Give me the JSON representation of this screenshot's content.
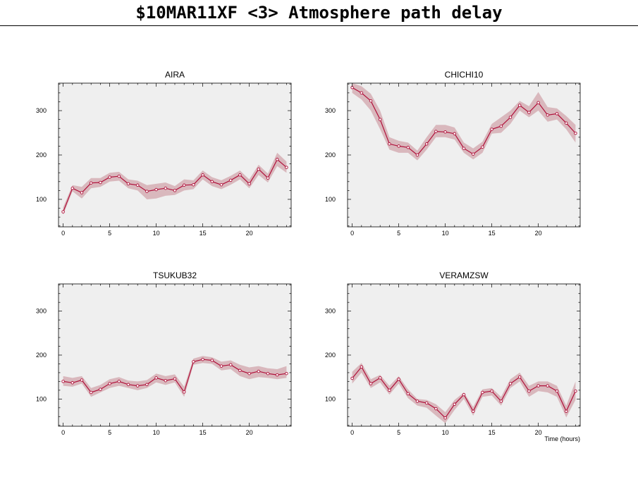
{
  "title": "$10MAR11XF <3>  Atmosphere path delay",
  "colors": {
    "line": "#b0103a",
    "band": "#d9b8bd",
    "plot_bg": "#efefef"
  },
  "chart_data": [
    {
      "type": "line",
      "title": "AIRA",
      "xlabel": "",
      "xlim": [
        -0.5,
        24.5
      ],
      "ylim": [
        38,
        362
      ],
      "xticks": [
        0,
        5,
        10,
        15,
        20
      ],
      "yticks": [
        100,
        200,
        300
      ],
      "x": [
        0,
        1,
        2,
        3,
        4,
        5,
        6,
        7,
        8,
        9,
        10,
        11,
        12,
        13,
        14,
        15,
        16,
        17,
        18,
        19,
        20,
        21,
        22,
        23,
        24
      ],
      "y": [
        72,
        125,
        115,
        137,
        138,
        150,
        152,
        135,
        132,
        118,
        122,
        125,
        120,
        132,
        133,
        155,
        140,
        133,
        143,
        155,
        135,
        168,
        148,
        190,
        172
      ],
      "lower": [
        65,
        118,
        102,
        125,
        128,
        140,
        142,
        125,
        120,
        100,
        102,
        108,
        110,
        120,
        123,
        145,
        130,
        123,
        133,
        145,
        125,
        155,
        138,
        175,
        160
      ],
      "upper": [
        82,
        132,
        128,
        148,
        148,
        160,
        162,
        145,
        142,
        132,
        135,
        138,
        130,
        145,
        143,
        165,
        150,
        143,
        153,
        165,
        145,
        178,
        158,
        205,
        185
      ]
    },
    {
      "type": "line",
      "title": "CHICHI10",
      "xlabel": "",
      "xlim": [
        -0.5,
        24.5
      ],
      "ylim": [
        38,
        362
      ],
      "xticks": [
        0,
        5,
        10,
        15,
        20
      ],
      "yticks": [
        100,
        200,
        300
      ],
      "x": [
        0,
        1,
        2,
        3,
        4,
        5,
        6,
        7,
        8,
        9,
        10,
        11,
        12,
        13,
        14,
        15,
        16,
        17,
        18,
        19,
        20,
        21,
        22,
        23,
        24
      ],
      "y": [
        352,
        340,
        322,
        280,
        225,
        220,
        217,
        200,
        225,
        253,
        252,
        248,
        215,
        202,
        218,
        258,
        265,
        285,
        312,
        296,
        318,
        290,
        293,
        272,
        249
      ],
      "lower": [
        340,
        325,
        300,
        258,
        212,
        205,
        205,
        188,
        212,
        240,
        240,
        235,
        205,
        190,
        205,
        248,
        250,
        270,
        300,
        285,
        300,
        275,
        280,
        258,
        228
      ],
      "upper": [
        362,
        355,
        338,
        300,
        240,
        232,
        228,
        210,
        240,
        268,
        268,
        262,
        228,
        215,
        230,
        270,
        285,
        300,
        322,
        310,
        342,
        308,
        305,
        288,
        268
      ]
    },
    {
      "type": "line",
      "title": "TSUKUB32",
      "xlabel": "",
      "xlim": [
        -0.5,
        24.5
      ],
      "ylim": [
        38,
        362
      ],
      "xticks": [
        0,
        5,
        10,
        15,
        20
      ],
      "yticks": [
        100,
        200,
        300
      ],
      "x": [
        0,
        1,
        2,
        3,
        4,
        5,
        6,
        7,
        8,
        9,
        10,
        11,
        12,
        13,
        14,
        15,
        16,
        17,
        18,
        19,
        20,
        21,
        22,
        23,
        24
      ],
      "y": [
        140,
        137,
        143,
        115,
        122,
        135,
        140,
        133,
        130,
        133,
        148,
        142,
        146,
        116,
        185,
        190,
        188,
        175,
        178,
        165,
        158,
        163,
        158,
        155,
        158
      ],
      "lower": [
        130,
        128,
        135,
        105,
        115,
        125,
        130,
        125,
        120,
        125,
        138,
        132,
        138,
        105,
        178,
        182,
        180,
        165,
        168,
        152,
        145,
        150,
        148,
        145,
        148
      ],
      "upper": [
        152,
        148,
        152,
        125,
        132,
        145,
        150,
        142,
        140,
        143,
        158,
        152,
        156,
        128,
        192,
        198,
        195,
        185,
        188,
        178,
        172,
        175,
        170,
        168,
        175
      ]
    },
    {
      "type": "line",
      "title": "VERAMZSW",
      "xlabel": "Time (hours)",
      "xlim": [
        -0.5,
        24.5
      ],
      "ylim": [
        38,
        362
      ],
      "xticks": [
        0,
        5,
        10,
        15,
        20
      ],
      "yticks": [
        100,
        200,
        300
      ],
      "x": [
        0,
        1,
        2,
        3,
        4,
        5,
        6,
        7,
        8,
        9,
        10,
        11,
        12,
        13,
        14,
        15,
        16,
        17,
        18,
        19,
        20,
        21,
        22,
        23,
        24
      ],
      "y": [
        147,
        173,
        135,
        148,
        120,
        145,
        112,
        95,
        91,
        78,
        57,
        88,
        110,
        72,
        115,
        118,
        95,
        135,
        150,
        118,
        130,
        130,
        118,
        72,
        118
      ],
      "lower": [
        135,
        160,
        125,
        138,
        110,
        135,
        102,
        85,
        80,
        62,
        45,
        75,
        100,
        62,
        105,
        108,
        85,
        125,
        140,
        105,
        118,
        115,
        105,
        58,
        98
      ],
      "upper": [
        162,
        182,
        145,
        155,
        130,
        152,
        122,
        100,
        98,
        88,
        70,
        98,
        115,
        82,
        122,
        125,
        105,
        145,
        160,
        130,
        140,
        140,
        130,
        85,
        140
      ]
    }
  ]
}
